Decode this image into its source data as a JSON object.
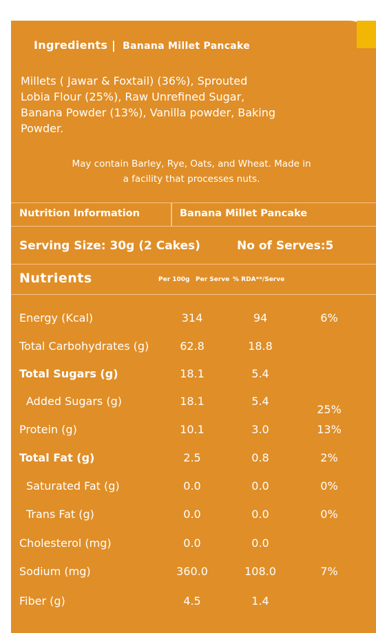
{
  "ingredients": {
    "title": "Ingredients |",
    "product": "Banana Millet Pancake",
    "lines": [
      "Millets ( Jawar & Foxtail) (36%), Sprouted",
      "Lobia Flour (25%), Raw Unrefined Sugar,",
      "Banana Powder (13%), Vanilla powder, Baking",
      "Powder."
    ],
    "note_lines": [
      "May contain Barley, Rye, Oats, and Wheat. Made in",
      "a facility that processes nuts."
    ]
  },
  "nutrition": {
    "header_left": "Nutrition Information",
    "header_right": "Banana Millet Pancake",
    "serving_size": "Serving Size: 30g (2 Cakes)",
    "serves": "No of Serves:5",
    "columns": {
      "nutrients": "Nutrients",
      "per100": "Per 100g",
      "perserve": "Per Serve",
      "rda": "% RDA**/Serve"
    },
    "rows": [
      {
        "label": "Energy (Kcal)",
        "per100": "314",
        "perserve": "94",
        "rda": "6%"
      },
      {
        "label": "Total Carbohydrates (g)",
        "per100": "62.8",
        "perserve": "18.8",
        "rda": ""
      },
      {
        "label": "Total Sugars (g)",
        "per100": "18.1",
        "perserve": "5.4",
        "rda": ""
      },
      {
        "label": "Added Sugars (g)",
        "per100": "18.1",
        "perserve": "5.4",
        "rda": ""
      },
      {
        "label": "Protein (g)",
        "per100": "10.1",
        "perserve": "3.0",
        "rda": "13%"
      },
      {
        "label": "Total Fat (g)",
        "per100": "2.5",
        "perserve": "0.8",
        "rda": "2%"
      },
      {
        "label": "Saturated Fat (g)",
        "per100": "0.0",
        "perserve": "0.0",
        "rda": "0%"
      },
      {
        "label": "Trans Fat (g)",
        "per100": "0.0",
        "perserve": "0.0",
        "rda": "0%"
      },
      {
        "label": "Cholesterol (mg)",
        "per100": "0.0",
        "perserve": "0.0",
        "rda": ""
      },
      {
        "label": "Sodium (mg)",
        "per100": "360.0",
        "perserve": "108.0",
        "rda": "7%"
      },
      {
        "label": "Fiber (g)",
        "per100": "4.5",
        "perserve": "1.4",
        "rda": ""
      }
    ],
    "sugars_rda": "25%"
  },
  "colors": {
    "background": "#E08E27",
    "divider": "#F4C58A",
    "accent_corner": "#F2B705",
    "text": "#FFFFFF"
  }
}
